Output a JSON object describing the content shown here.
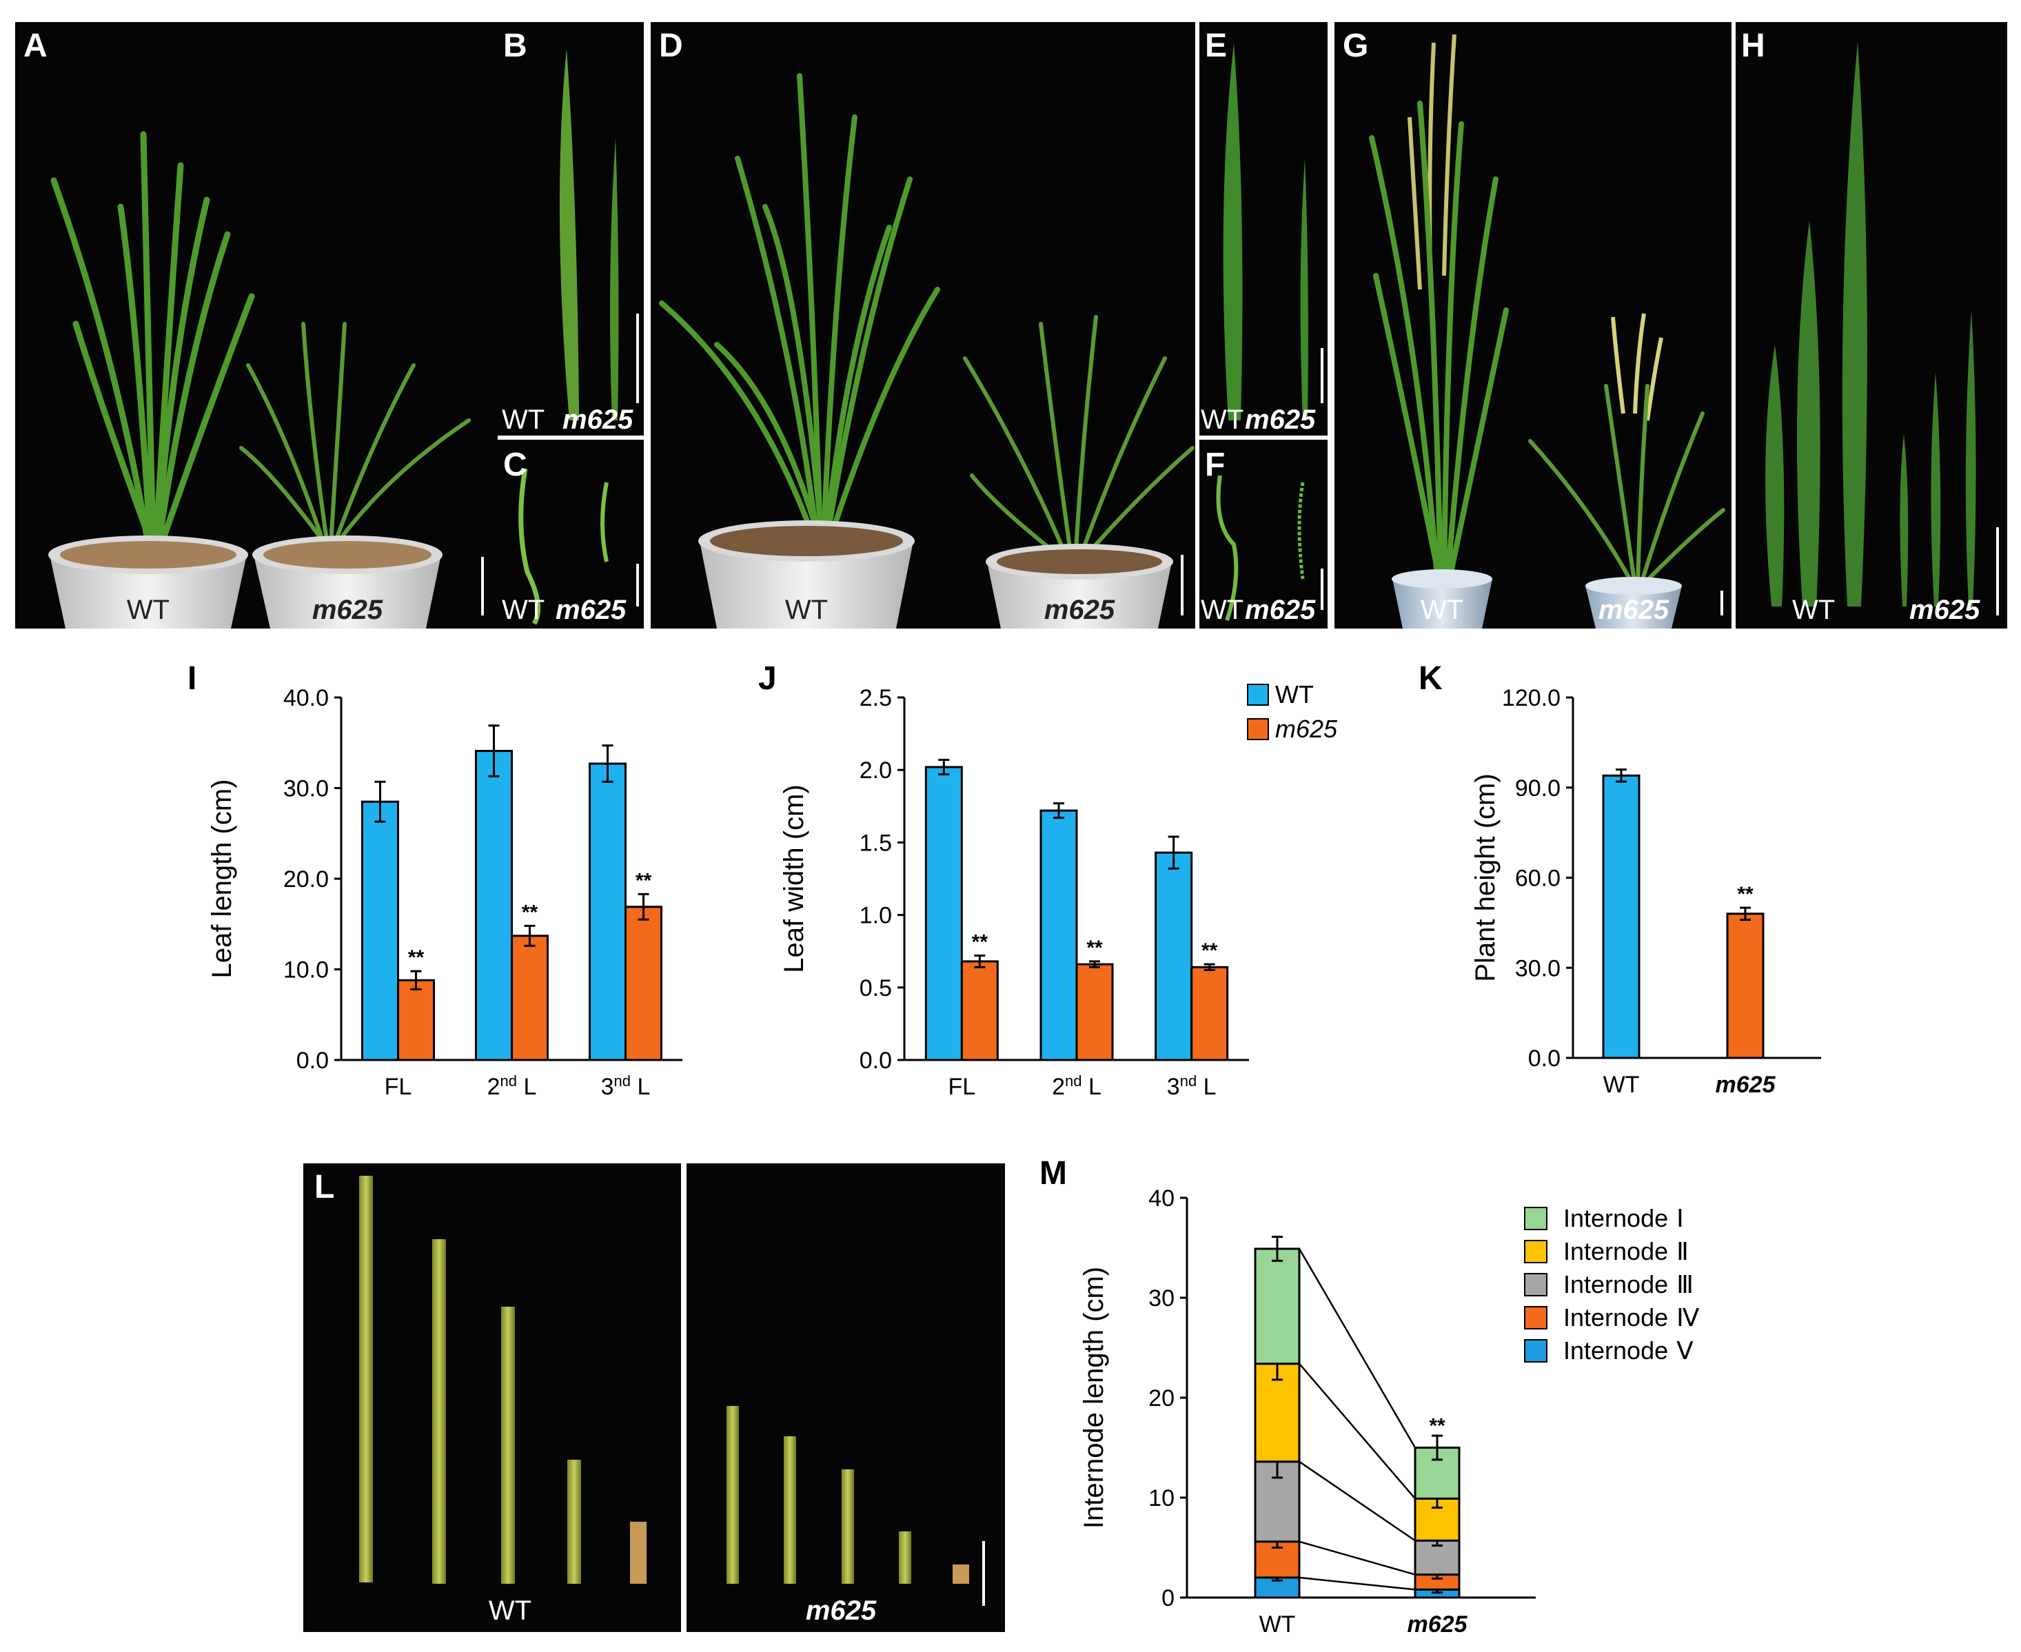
{
  "panels": {
    "A": {
      "letter": "A",
      "wt": "WT",
      "mut": "m625"
    },
    "B": {
      "letter": "B",
      "wt": "WT",
      "mut": "m625"
    },
    "C": {
      "letter": "C",
      "wt": "WT",
      "mut": "m625"
    },
    "D": {
      "letter": "D",
      "wt": "WT",
      "mut": "m625"
    },
    "E": {
      "letter": "E",
      "wt": "WT",
      "mut": "m625"
    },
    "F": {
      "letter": "F",
      "wt": "WT",
      "mut": "m625"
    },
    "G": {
      "letter": "G",
      "wt": "WT",
      "mut": "m625"
    },
    "H": {
      "letter": "H",
      "wt": "WT",
      "mut": "m625"
    },
    "L": {
      "letter": "L",
      "wt": "WT",
      "mut": "m625"
    }
  },
  "colors": {
    "wt": "#1EB1EE",
    "mut": "#F26A1B",
    "int1": "#99D594",
    "int2": "#FDC300",
    "int3": "#A6A6A6",
    "int4": "#F26A1B",
    "int5": "#1E9BE0"
  },
  "legend": {
    "wt": "WT",
    "mut": "m625"
  },
  "chart_data": [
    {
      "panel": "I",
      "type": "bar",
      "categories": [
        {
          "main": "FL",
          "sup": ""
        },
        {
          "main": "2",
          "sup": "nd",
          "tail": " L"
        },
        {
          "main": "3",
          "sup": "nd",
          "tail": " L"
        }
      ],
      "series": [
        {
          "name": "WT",
          "values": [
            28.5,
            34.1,
            32.7
          ],
          "errors": [
            2.2,
            2.8,
            2.0
          ]
        },
        {
          "name": "m625",
          "values": [
            8.8,
            13.7,
            16.9
          ],
          "errors": [
            1.0,
            1.1,
            1.4
          ],
          "sig": [
            "**",
            "**",
            "**"
          ]
        }
      ],
      "ylabel": "Leaf length (cm)",
      "ylim": [
        0,
        40
      ],
      "yticks": [
        "0.0",
        "10.0",
        "20.0",
        "30.0",
        "40.0"
      ]
    },
    {
      "panel": "J",
      "type": "bar",
      "categories": [
        {
          "main": "FL",
          "sup": ""
        },
        {
          "main": "2",
          "sup": "nd",
          "tail": " L"
        },
        {
          "main": "3",
          "sup": "nd",
          "tail": " L"
        }
      ],
      "series": [
        {
          "name": "WT",
          "values": [
            2.02,
            1.72,
            1.43
          ],
          "errors": [
            0.05,
            0.05,
            0.11
          ]
        },
        {
          "name": "m625",
          "values": [
            0.68,
            0.66,
            0.64
          ],
          "errors": [
            0.04,
            0.02,
            0.02
          ],
          "sig": [
            "**",
            "**",
            "**"
          ]
        }
      ],
      "ylabel": "Leaf width (cm)",
      "ylim": [
        0,
        2.5
      ],
      "yticks": [
        "0.0",
        "0.5",
        "1.0",
        "1.5",
        "2.0",
        "2.5"
      ]
    },
    {
      "panel": "K",
      "type": "bar",
      "categories": [
        {
          "main": "WT"
        },
        {
          "main": "m625",
          "italic": true
        }
      ],
      "values": [
        94.0,
        48.0
      ],
      "errors": [
        2.0,
        2.0
      ],
      "sig": [
        "",
        "**"
      ],
      "ylabel": "Plant height (cm)",
      "ylim": [
        0,
        120
      ],
      "yticks": [
        "0.0",
        "30.0",
        "60.0",
        "90.0",
        "120.0"
      ]
    },
    {
      "panel": "M",
      "type": "bar",
      "stacked": true,
      "categories": [
        {
          "main": "WT"
        },
        {
          "main": "m625",
          "italic": true
        }
      ],
      "series": [
        {
          "name": "Internode",
          "numeral": "Ⅴ",
          "values": [
            2.0,
            0.8
          ],
          "errors": [
            0.3,
            0.3
          ],
          "sig": [
            "",
            "**"
          ]
        },
        {
          "name": "Internode",
          "numeral": "Ⅳ",
          "values": [
            3.6,
            1.5
          ],
          "errors": [
            0.6,
            0.4
          ],
          "sig": [
            "",
            "**"
          ]
        },
        {
          "name": "Internode",
          "numeral": "Ⅲ",
          "values": [
            8.0,
            3.4
          ],
          "errors": [
            1.6,
            0.5
          ],
          "sig": [
            "",
            "**"
          ]
        },
        {
          "name": "Internode",
          "numeral": "Ⅱ",
          "values": [
            9.8,
            4.2
          ],
          "errors": [
            1.6,
            0.9
          ],
          "sig": [
            "",
            "**"
          ]
        },
        {
          "name": "Internode",
          "numeral": "Ⅰ",
          "values": [
            11.5,
            5.1
          ],
          "errors": [
            1.2,
            1.2
          ],
          "sig": [
            "",
            "**"
          ]
        }
      ],
      "legend_order": [
        4,
        3,
        2,
        1,
        0
      ],
      "ylabel": "Internode length (cm)",
      "ylim": [
        0,
        40
      ],
      "yticks": [
        "0",
        "10",
        "20",
        "30",
        "40"
      ]
    }
  ]
}
